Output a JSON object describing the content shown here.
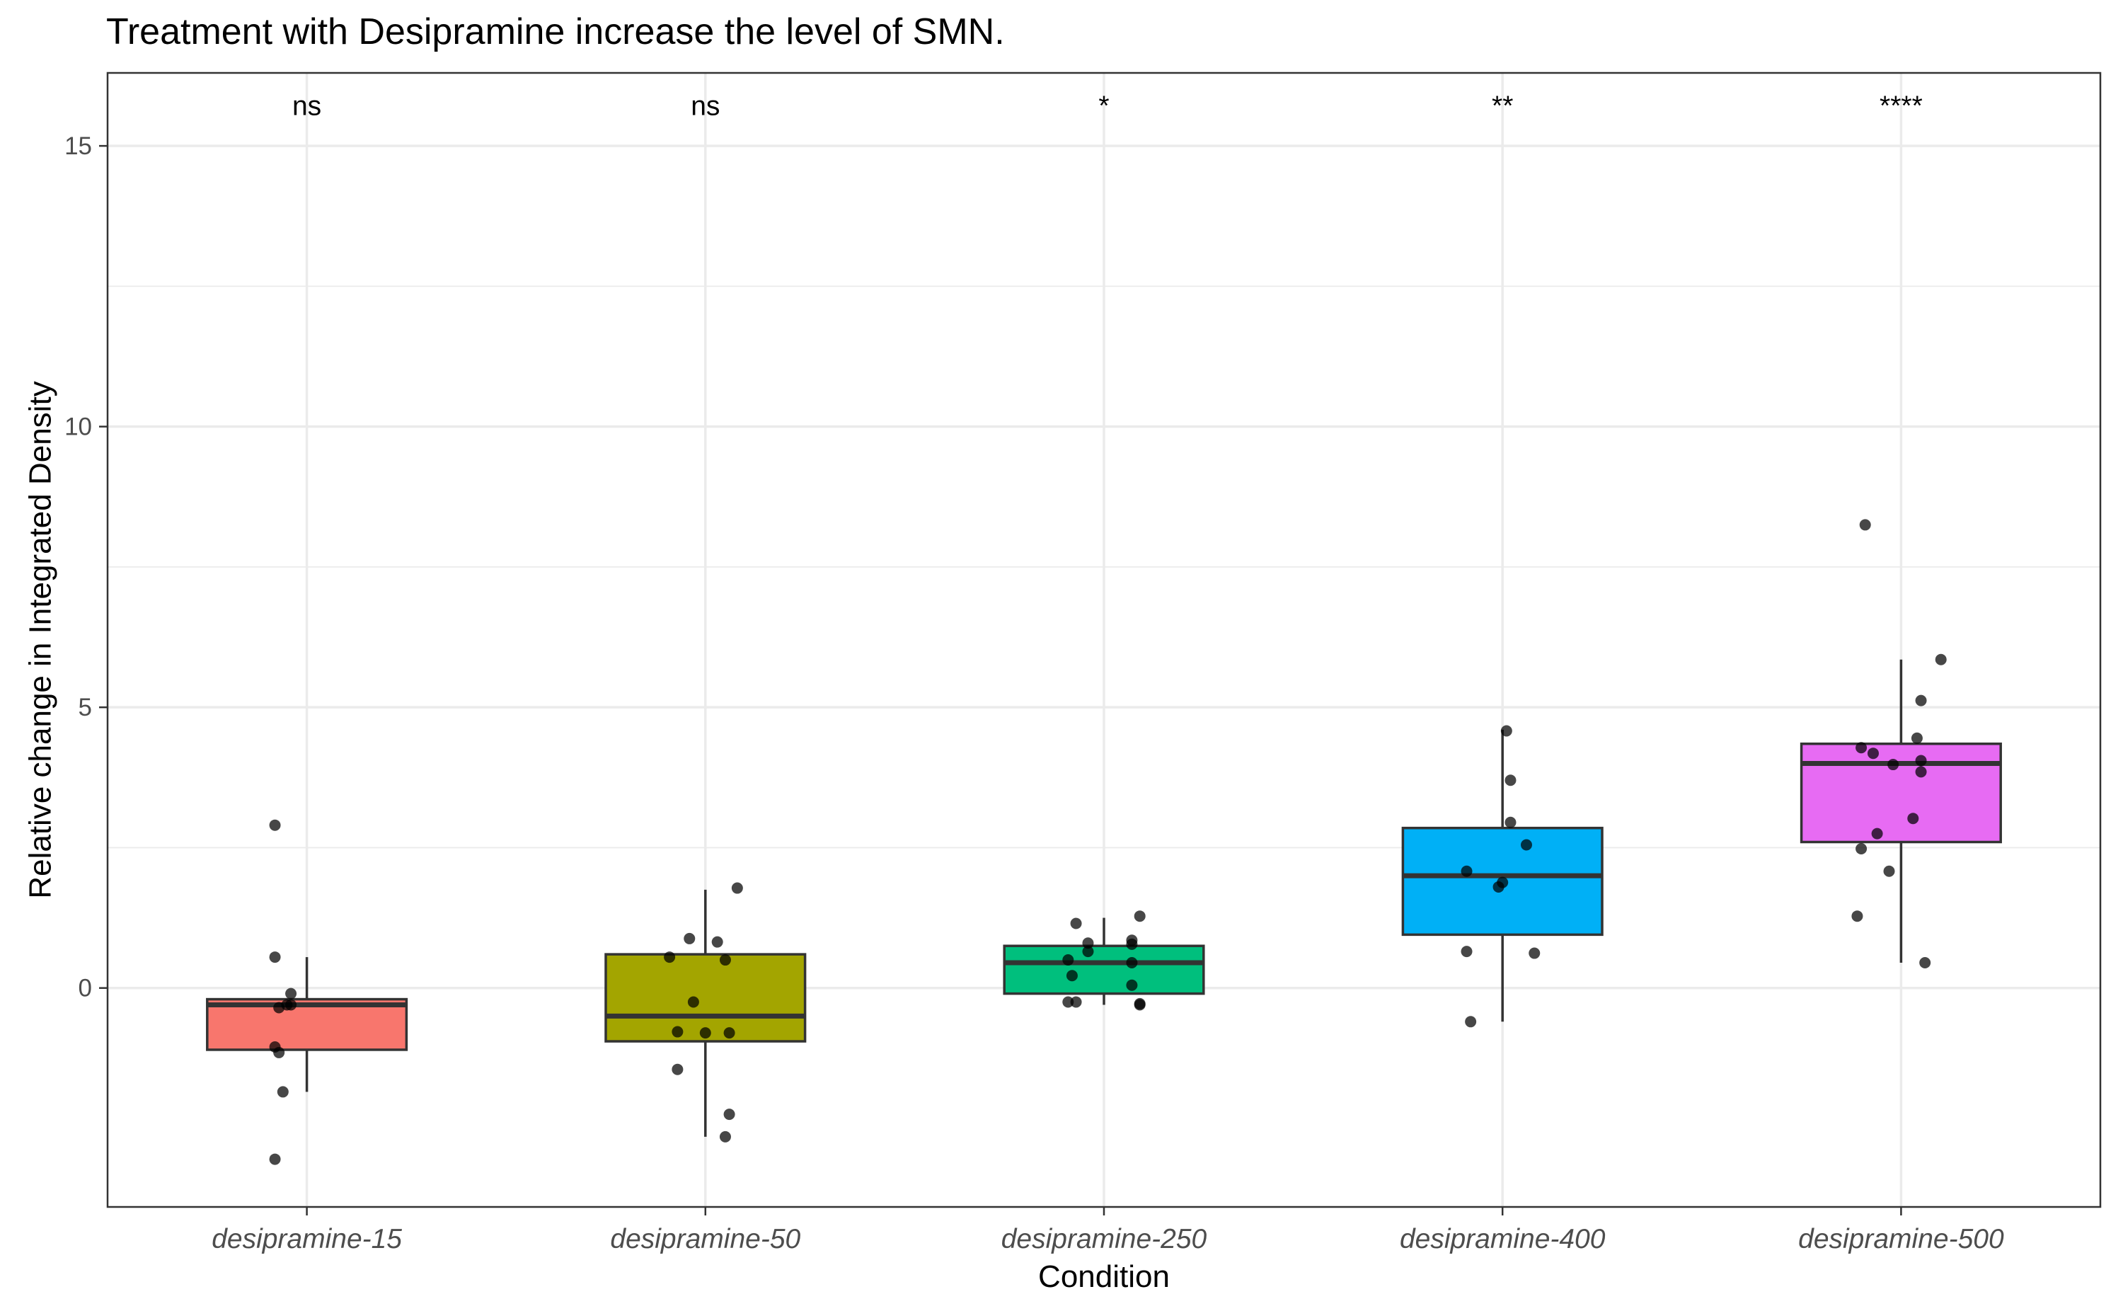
{
  "chart_data": {
    "type": "box",
    "title": "Treatment with Desipramine increase the level of SMN.",
    "xlabel": "Condition",
    "ylabel": "Relative change in Integrated Density",
    "ylim": [
      -3.9,
      16.3
    ],
    "yticks": [
      0,
      5,
      10,
      15
    ],
    "ytick_labels": [
      "0",
      "5",
      "10",
      "15"
    ],
    "grid": true,
    "legend": "none",
    "categories": [
      "desipramine-15",
      "desipramine-50",
      "desipramine-250",
      "desipramine-400",
      "desipramine-500"
    ],
    "series": [
      {
        "category": "desipramine-15",
        "color": "#F8766D",
        "q1": -1.1,
        "median": -0.3,
        "q3": -0.2,
        "whisker_low": -1.85,
        "whisker_high": 0.55,
        "significance": "ns",
        "points": [
          {
            "x": -0.08,
            "y": 2.9
          },
          {
            "x": -0.08,
            "y": -3.05
          },
          {
            "x": -0.08,
            "y": -1.05
          },
          {
            "x": -0.07,
            "y": -0.35
          },
          {
            "x": -0.05,
            "y": -0.3
          },
          {
            "x": -0.04,
            "y": -0.3
          },
          {
            "x": -0.04,
            "y": -0.1
          },
          {
            "x": -0.07,
            "y": -1.15
          },
          {
            "x": -0.06,
            "y": -1.85
          },
          {
            "x": -0.08,
            "y": 0.55
          }
        ]
      },
      {
        "category": "desipramine-50",
        "color": "#A3A500",
        "q1": -0.95,
        "median": -0.5,
        "q3": 0.6,
        "whisker_low": -2.65,
        "whisker_high": 1.75,
        "significance": "ns",
        "points": [
          {
            "x": 0.08,
            "y": 1.78
          },
          {
            "x": -0.04,
            "y": 0.88
          },
          {
            "x": 0.03,
            "y": 0.82
          },
          {
            "x": -0.09,
            "y": 0.55
          },
          {
            "x": 0.05,
            "y": 0.5
          },
          {
            "x": -0.03,
            "y": -0.25
          },
          {
            "x": -0.07,
            "y": -0.78
          },
          {
            "x": 0.0,
            "y": -0.8
          },
          {
            "x": 0.06,
            "y": -0.8
          },
          {
            "x": -0.07,
            "y": -1.45
          },
          {
            "x": 0.06,
            "y": -2.25
          },
          {
            "x": 0.05,
            "y": -2.65
          }
        ]
      },
      {
        "category": "desipramine-250",
        "color": "#00BF7D",
        "q1": -0.1,
        "median": 0.45,
        "q3": 0.75,
        "whisker_low": -0.3,
        "whisker_high": 1.25,
        "significance": "*",
        "points": [
          {
            "x": 0.09,
            "y": 1.28
          },
          {
            "x": -0.07,
            "y": 1.15
          },
          {
            "x": -0.04,
            "y": 0.8
          },
          {
            "x": 0.07,
            "y": 0.85
          },
          {
            "x": 0.07,
            "y": 0.78
          },
          {
            "x": -0.04,
            "y": 0.65
          },
          {
            "x": -0.09,
            "y": 0.5
          },
          {
            "x": 0.07,
            "y": 0.45
          },
          {
            "x": -0.08,
            "y": 0.22
          },
          {
            "x": 0.07,
            "y": 0.05
          },
          {
            "x": 0.09,
            "y": -0.3
          },
          {
            "x": -0.07,
            "y": -0.25
          },
          {
            "x": -0.09,
            "y": -0.25
          },
          {
            "x": 0.09,
            "y": -0.28
          }
        ]
      },
      {
        "category": "desipramine-400",
        "color": "#00B0F6",
        "q1": 0.95,
        "median": 2.0,
        "q3": 2.85,
        "whisker_low": -0.6,
        "whisker_high": 4.6,
        "significance": "**",
        "points": [
          {
            "x": 0.01,
            "y": 4.58
          },
          {
            "x": 0.02,
            "y": 3.7
          },
          {
            "x": 0.02,
            "y": 2.95
          },
          {
            "x": 0.06,
            "y": 2.55
          },
          {
            "x": -0.09,
            "y": 2.08
          },
          {
            "x": 0.0,
            "y": 1.88
          },
          {
            "x": -0.01,
            "y": 1.8
          },
          {
            "x": 0.08,
            "y": 0.62
          },
          {
            "x": -0.09,
            "y": 0.65
          },
          {
            "x": -0.08,
            "y": -0.6
          }
        ]
      },
      {
        "category": "desipramine-500",
        "color": "#E76BF3",
        "q1": 2.6,
        "median": 4.0,
        "q3": 4.35,
        "whisker_low": 0.45,
        "whisker_high": 5.85,
        "significance": "****",
        "points": [
          {
            "x": -0.09,
            "y": 8.25
          },
          {
            "x": 0.1,
            "y": 5.85
          },
          {
            "x": 0.05,
            "y": 5.12
          },
          {
            "x": 0.04,
            "y": 4.45
          },
          {
            "x": -0.1,
            "y": 4.28
          },
          {
            "x": -0.07,
            "y": 4.18
          },
          {
            "x": 0.05,
            "y": 4.05
          },
          {
            "x": -0.02,
            "y": 3.98
          },
          {
            "x": 0.05,
            "y": 3.85
          },
          {
            "x": 0.03,
            "y": 3.02
          },
          {
            "x": -0.1,
            "y": 2.48
          },
          {
            "x": -0.06,
            "y": 2.75
          },
          {
            "x": -0.03,
            "y": 2.08
          },
          {
            "x": -0.11,
            "y": 1.28
          },
          {
            "x": 0.06,
            "y": 0.45
          }
        ]
      }
    ]
  }
}
